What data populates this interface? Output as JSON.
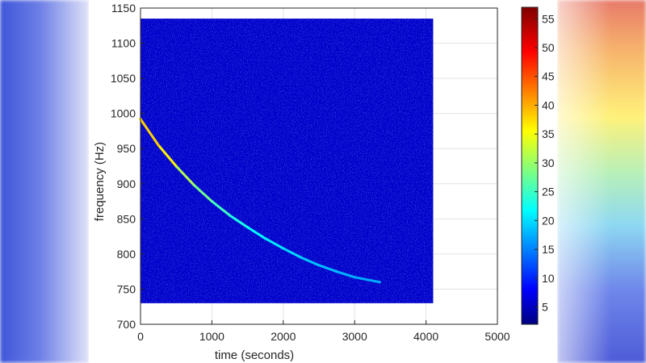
{
  "chart_data": {
    "type": "heatmap",
    "title": "",
    "xlabel": "time (seconds)",
    "ylabel": "frequency (Hz)",
    "xlim": [
      0,
      5000
    ],
    "ylim": [
      700,
      1150
    ],
    "x_ticks": [
      0,
      1000,
      2000,
      3000,
      4000,
      5000
    ],
    "y_ticks": [
      700,
      750,
      800,
      850,
      900,
      950,
      1000,
      1050,
      1100,
      1150
    ],
    "grid": true,
    "data_extent": {
      "x": [
        0,
        4100
      ],
      "y": [
        730,
        1135
      ]
    },
    "background_value": 6,
    "colorbar": {
      "colormap": "jet",
      "range": [
        2,
        57
      ],
      "ticks": [
        5,
        10,
        15,
        20,
        25,
        30,
        35,
        40,
        45,
        50,
        55
      ]
    },
    "signal_track": {
      "name": "",
      "points": [
        {
          "x": 0,
          "y": 992,
          "value": 38
        },
        {
          "x": 250,
          "y": 955,
          "value": 40
        },
        {
          "x": 500,
          "y": 925,
          "value": 34
        },
        {
          "x": 750,
          "y": 898,
          "value": 30
        },
        {
          "x": 1000,
          "y": 875,
          "value": 27
        },
        {
          "x": 1250,
          "y": 855,
          "value": 25
        },
        {
          "x": 1500,
          "y": 838,
          "value": 23
        },
        {
          "x": 1750,
          "y": 822,
          "value": 22
        },
        {
          "x": 2000,
          "y": 808,
          "value": 21
        },
        {
          "x": 2250,
          "y": 795,
          "value": 20
        },
        {
          "x": 2500,
          "y": 784,
          "value": 19
        },
        {
          "x": 2750,
          "y": 775,
          "value": 19
        },
        {
          "x": 3000,
          "y": 767,
          "value": 18
        },
        {
          "x": 3350,
          "y": 760,
          "value": 18
        }
      ]
    }
  }
}
